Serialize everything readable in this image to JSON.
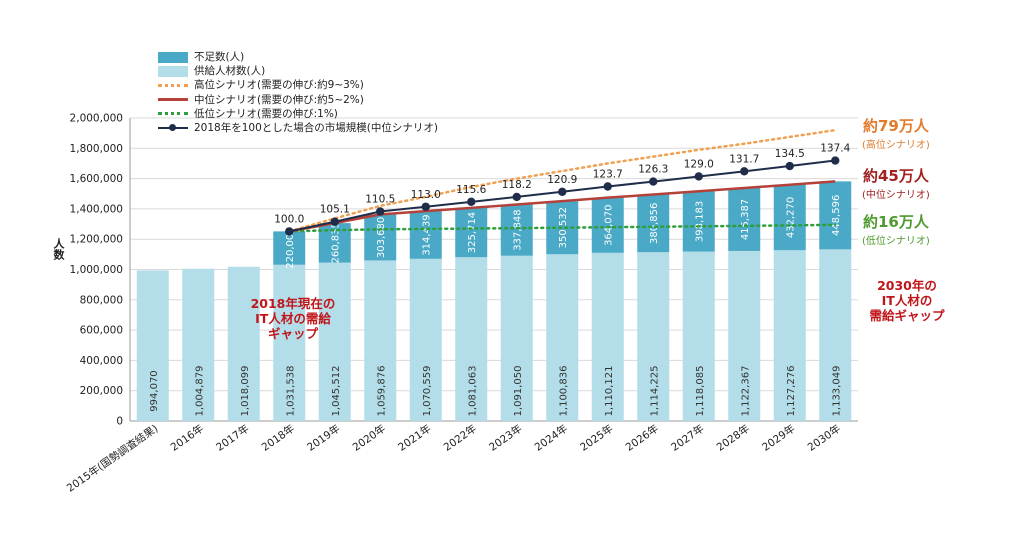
{
  "chart_data": {
    "type": "bar",
    "ylabel": "人数",
    "ylim": [
      0,
      2000000
    ],
    "yticks": [
      "0",
      "200,000",
      "400,000",
      "600,000",
      "800,000",
      "1,000,000",
      "1,200,000",
      "1,400,000",
      "1,600,000",
      "1,800,000",
      "2,000,000"
    ],
    "categories": [
      "2015年(国勢調査結果)",
      "2016年",
      "2017年",
      "2018年",
      "2019年",
      "2020年",
      "2021年",
      "2022年",
      "2023年",
      "2024年",
      "2025年",
      "2026年",
      "2027年",
      "2028年",
      "2029年",
      "2030年"
    ],
    "supply": [
      994070,
      1004879,
      1018099,
      1031538,
      1045512,
      1059876,
      1070559,
      1081063,
      1091050,
      1100836,
      1110121,
      1114225,
      1118085,
      1122367,
      1127276,
      1133049
    ],
    "supply_labels": [
      "994,070",
      "1,004,879",
      "1,018,099",
      "1,031,538",
      "1,045,512",
      "1,059,876",
      "1,070,559",
      "1,081,063",
      "1,091,050",
      "1,100,836",
      "1,110,121",
      "1,114,225",
      "1,118,085",
      "1,122,367",
      "1,127,276",
      "1,133,049"
    ],
    "shortage": [
      null,
      null,
      null,
      220000,
      260835,
      303680,
      314439,
      325714,
      337848,
      350532,
      364070,
      380856,
      398183,
      415387,
      432270,
      448596
    ],
    "shortage_labels": [
      "",
      "",
      "",
      "220,000",
      "260,835",
      "303,680",
      "314,439",
      "325,714",
      "337,848",
      "350,532",
      "364,070",
      "380,856",
      "398,183",
      "415,387",
      "432,270",
      "448,596"
    ],
    "high_scenario": [
      null,
      null,
      null,
      1251538,
      1337000,
      1420000,
      1480000,
      1545000,
      1600000,
      1650000,
      1700000,
      1745000,
      1790000,
      1830000,
      1875000,
      1920000
    ],
    "mid_scenario": [
      null,
      null,
      null,
      1251538,
      1306347,
      1363556,
      1384998,
      1406777,
      1428898,
      1451368,
      1474191,
      1495081,
      1516268,
      1537754,
      1559546,
      1581645
    ],
    "low_scenario": [
      null,
      null,
      null,
      1251538,
      1260000,
      1265000,
      1268000,
      1270000,
      1273000,
      1276000,
      1279000,
      1282000,
      1285000,
      1288000,
      1291000,
      1295000
    ],
    "market_index": [
      null,
      null,
      null,
      100.0,
      105.1,
      110.5,
      113.0,
      115.6,
      118.2,
      120.9,
      123.7,
      126.3,
      129.0,
      131.7,
      134.5,
      137.4
    ],
    "market_index_labels": [
      "",
      "",
      "",
      "100.0",
      "105.1",
      "110.5",
      "113.0",
      "115.6",
      "118.2",
      "120.9",
      "123.7",
      "126.3",
      "129.0",
      "131.7",
      "134.5",
      "137.4"
    ],
    "legend": [
      {
        "label": "不足数(人)",
        "color": "#4aa9c6",
        "kind": "bar"
      },
      {
        "label": "供給人材数(人)",
        "color": "#b3dde8",
        "kind": "bar"
      },
      {
        "label": "高位シナリオ(需要の伸び:約9~3%)",
        "color": "#f0a050",
        "kind": "dot"
      },
      {
        "label": "中位シナリオ(需要の伸び:約5~2%)",
        "color": "#b5413b",
        "kind": "line"
      },
      {
        "label": "低位シナリオ(需要の伸び:1%)",
        "color": "#2e9e3e",
        "kind": "dot"
      },
      {
        "label": "2018年を100とした場合の市場規模(中位シナリオ)",
        "color": "#1f2d4a",
        "kind": "marker"
      }
    ]
  },
  "annotations": {
    "high": {
      "big": "約79万人",
      "small": "(高位シナリオ)",
      "color": "#e27a2a"
    },
    "mid": {
      "big": "約45万人",
      "small": "(中位シナリオ)",
      "color": "#a12020"
    },
    "low": {
      "big": "約16万人",
      "small": "(低位シナリオ)",
      "color": "#4d9a2e"
    },
    "gap2018": [
      "2018年現在の",
      "IT人材の需給",
      "ギャップ"
    ],
    "gap2030": [
      "2030年の",
      "IT人材の",
      "需給ギャップ"
    ]
  }
}
